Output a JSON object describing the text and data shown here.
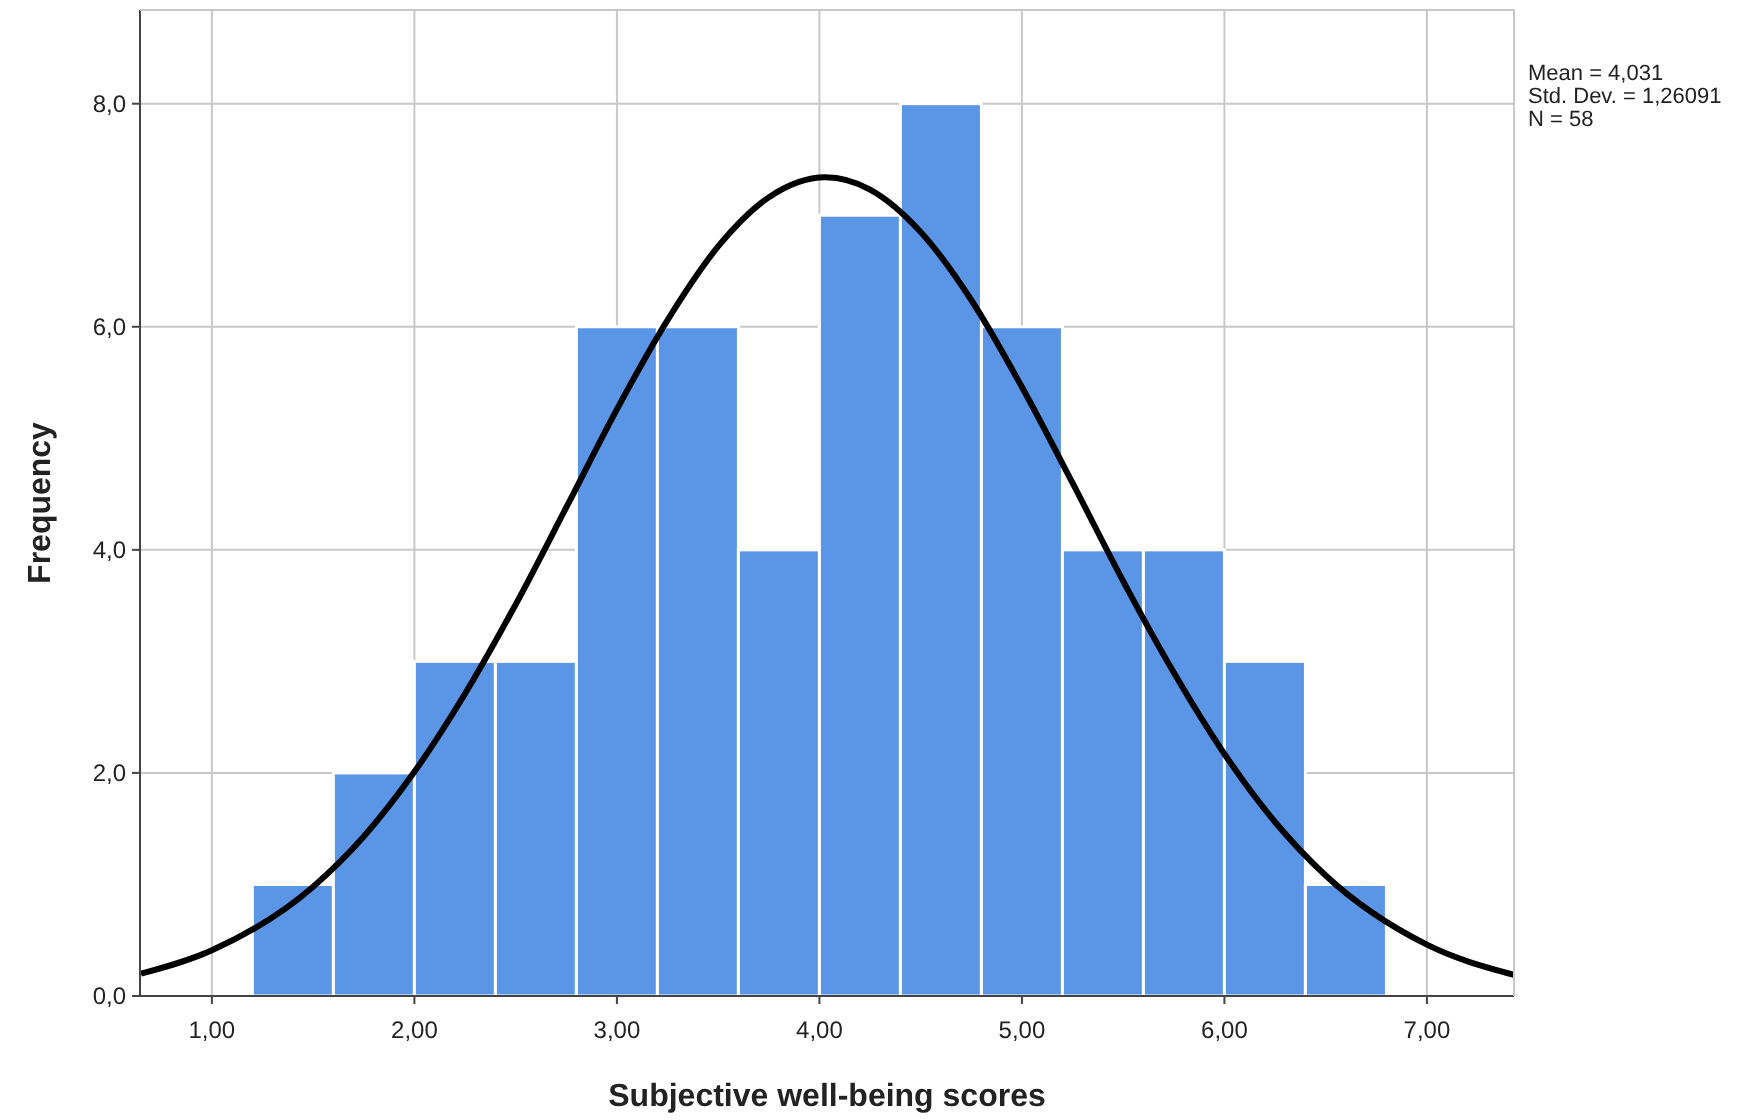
{
  "chart_data": {
    "type": "histogram",
    "xlabel": "Subjective well-being scores",
    "ylabel": "Frequency",
    "bins": [
      1.2,
      1.6,
      2.0,
      2.4,
      2.8,
      3.2,
      3.6,
      4.0,
      4.4,
      4.8,
      5.2,
      5.6,
      6.0,
      6.4,
      6.8
    ],
    "values": [
      1,
      2,
      3,
      3,
      6,
      6,
      4,
      7,
      8,
      6,
      4,
      4,
      3,
      1
    ],
    "color": "#5b95e5",
    "series": [
      {
        "type": "line",
        "color": "#000000",
        "x": [
          0.65,
          1.0,
          1.5,
          1.75,
          2.0,
          2.25,
          2.5,
          2.75,
          3.0,
          3.25,
          3.5,
          3.75,
          4.03,
          4.25,
          4.5,
          4.75,
          5.0,
          5.25,
          5.5,
          5.75,
          6.0,
          6.25,
          6.5,
          7.0,
          7.43
        ],
        "values": [
          0.2,
          0.41,
          0.98,
          1.43,
          2.01,
          2.71,
          3.51,
          4.38,
          5.26,
          6.06,
          6.72,
          7.16,
          7.34,
          7.23,
          6.85,
          6.24,
          5.46,
          4.6,
          3.72,
          2.9,
          2.17,
          1.56,
          1.08,
          0.46,
          0.19
        ]
      }
    ],
    "xlim": [
      0.645,
      7.43
    ],
    "ylim": [
      0,
      8.84
    ],
    "xticks": [
      {
        "value": 1,
        "label": "1,00"
      },
      {
        "value": 2,
        "label": "2,00"
      },
      {
        "value": 3,
        "label": "3,00"
      },
      {
        "value": 4,
        "label": "4,00"
      },
      {
        "value": 5,
        "label": "5,00"
      },
      {
        "value": 6,
        "label": "6,00"
      },
      {
        "value": 7,
        "label": "7,00"
      }
    ],
    "yticks": [
      {
        "value": 0,
        "label": "0,0"
      },
      {
        "value": 2,
        "label": "2,0"
      },
      {
        "value": 4,
        "label": "4,0"
      },
      {
        "value": 6,
        "label": "6,0"
      },
      {
        "value": 8,
        "label": "8,0"
      }
    ],
    "grid": true,
    "marker": "none",
    "line_style": "solid",
    "annotations": [
      "Mean = 4,031",
      "Std. Dev. = 1,26091",
      "N = 58"
    ]
  }
}
